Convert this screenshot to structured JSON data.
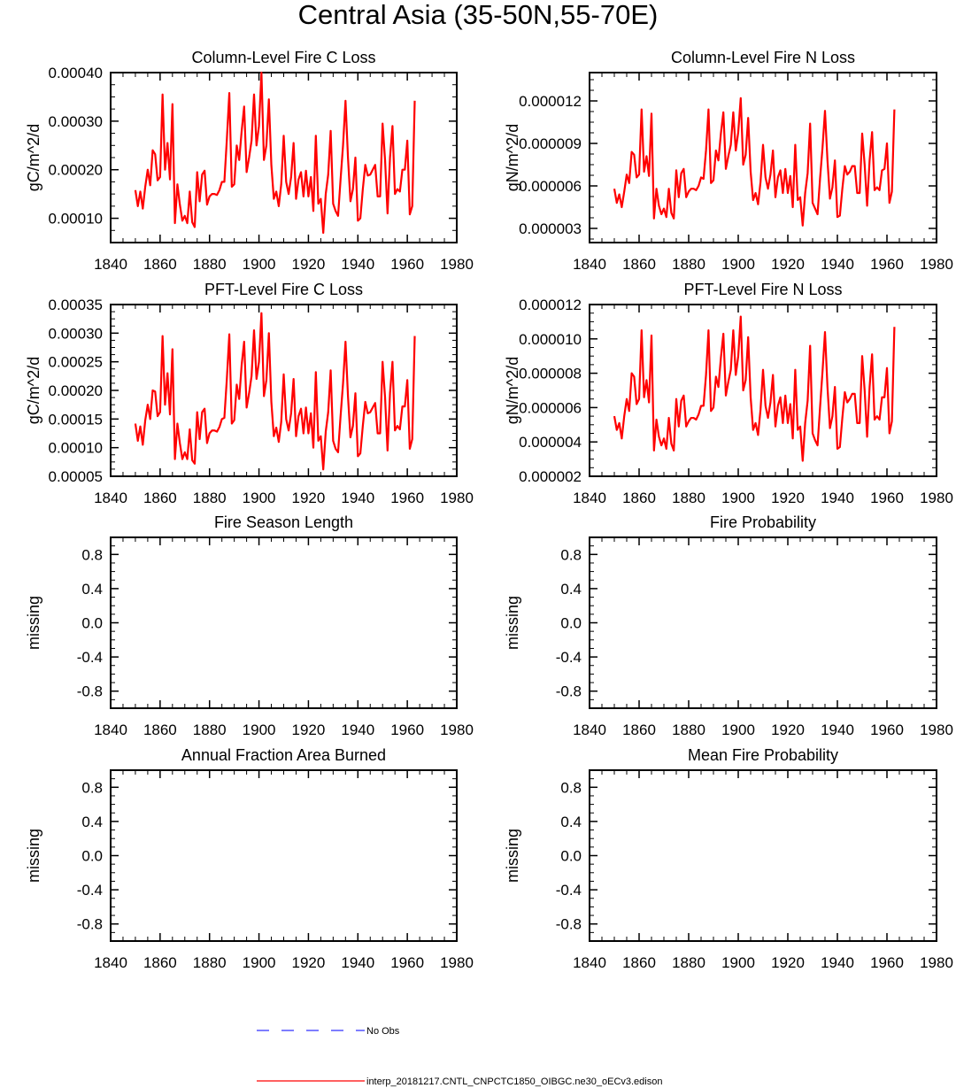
{
  "figure": {
    "title": "Central Asia (35-50N,55-70E)",
    "legend": [
      {
        "label": "No Obs",
        "color": "#3030ff",
        "dash": true
      },
      {
        "label": "interp_20181217.CNTL_CNPCTC1850_OIBGC.ne30_oECv3.edison",
        "color": "#ff0000",
        "dash": false
      }
    ]
  },
  "chart_data": [
    {
      "type": "line",
      "title": "Column-Level Fire C Loss",
      "ylabel": "gC/m^2/d",
      "xlim": [
        1840,
        1980
      ],
      "ylim": [
        5e-05,
        0.0004
      ],
      "xticks": [
        "1840",
        "1860",
        "1880",
        "1900",
        "1920",
        "1940",
        "1960",
        "1980"
      ],
      "yticks": [
        {
          "v": 0.0001,
          "label": "0.00010"
        },
        {
          "v": 0.0002,
          "label": "0.00020"
        },
        {
          "v": 0.0003,
          "label": "0.00030"
        },
        {
          "v": 0.0004,
          "label": "0.00040"
        }
      ],
      "series": [
        {
          "name": "interp_20181217.CNTL_CNPCTC1850_OIBGC.ne30_oECv3.edison",
          "color": "#ff0000",
          "x_start": 1850,
          "values": [
            0.000158,
            0.000125,
            0.000155,
            0.00012,
            0.000165,
            0.0002,
            0.000168,
            0.00024,
            0.000232,
            0.000178,
            0.000185,
            0.000355,
            0.0002,
            0.000255,
            0.00018,
            0.000335,
            9e-05,
            0.00017,
            0.000128,
            9.5e-05,
            0.000105,
            9e-05,
            0.000155,
            9.2e-05,
            8.2e-05,
            0.000195,
            0.000135,
            0.00019,
            0.000198,
            0.000128,
            0.000145,
            0.00015,
            0.00015,
            0.000148,
            0.000158,
            0.000175,
            0.000175,
            0.000262,
            0.000358,
            0.000165,
            0.00017,
            0.00025,
            0.00022,
            0.00028,
            0.00033,
            0.000195,
            0.000225,
            0.00026,
            0.000355,
            0.00025,
            0.00029,
            0.0004,
            0.00022,
            0.00025,
            0.000345,
            0.00021,
            0.00014,
            0.000155,
            0.000125,
            0.00017,
            0.00027,
            0.000175,
            0.00015,
            0.000185,
            0.000255,
            0.00014,
            0.00018,
            0.000195,
            0.000145,
            0.000198,
            0.000145,
            0.000185,
            0.000115,
            0.00027,
            0.00013,
            0.00014,
            7e-05,
            0.00015,
            0.00019,
            0.00028,
            0.00013,
            0.000115,
            0.000105,
            0.00018,
            0.00025,
            0.000342,
            0.000225,
            0.000135,
            0.00016,
            0.000225,
            9.5e-05,
            0.0001,
            0.00016,
            0.00021,
            0.000188,
            0.00019,
            0.0002,
            0.00021,
            0.000145,
            0.000145,
            0.000295,
            0.00022,
            0.00011,
            0.000225,
            0.00029,
            0.00015,
            0.00016,
            0.000155,
            0.0002,
            0.0002,
            0.00026,
            0.000108,
            0.000125,
            0.000342
          ]
        }
      ]
    },
    {
      "type": "line",
      "title": "Column-Level Fire N Loss",
      "ylabel": "gN/m^2/d",
      "xlim": [
        1840,
        1980
      ],
      "ylim": [
        2e-06,
        1.4e-05
      ],
      "xticks": [
        "1840",
        "1860",
        "1880",
        "1900",
        "1920",
        "1940",
        "1960",
        "1980"
      ],
      "yticks": [
        {
          "v": 3e-06,
          "label": "0.000003"
        },
        {
          "v": 6e-06,
          "label": "0.000006"
        },
        {
          "v": 9e-06,
          "label": "0.000009"
        },
        {
          "v": 1.2e-05,
          "label": "0.000012"
        }
      ],
      "series": [
        {
          "name": "interp_20181217.CNTL_CNPCTC1850_OIBGC.ne30_oECv3.edison",
          "color": "#ff0000",
          "x_start": 1850,
          "values": [
            5.8e-06,
            4.8e-06,
            5.4e-06,
            4.5e-06,
            5.6e-06,
            6.8e-06,
            6.2e-06,
            8.4e-06,
            8.2e-06,
            6.6e-06,
            6.8e-06,
            1.14e-05,
            7e-06,
            8.1e-06,
            6.7e-06,
            1.11e-05,
            3.7e-06,
            5.8e-06,
            4.6e-06,
            4e-06,
            4.4e-06,
            3.8e-06,
            5.8e-06,
            4.1e-06,
            3.7e-06,
            7.1e-06,
            5.2e-06,
            6.9e-06,
            7.2e-06,
            5.2e-06,
            5.6e-06,
            5.8e-06,
            5.8e-06,
            5.7e-06,
            6e-06,
            6.6e-06,
            6.5e-06,
            8.5e-06,
            1.14e-05,
            6.2e-06,
            6.4e-06,
            8.5e-06,
            7.8e-06,
            9.7e-06,
            1.12e-05,
            7.2e-06,
            8.1e-06,
            8.9e-06,
            1.12e-05,
            8.5e-06,
            9.8e-06,
            1.22e-05,
            7.5e-06,
            8.2e-06,
            1.08e-05,
            7e-06,
            5e-06,
            5.5e-06,
            4.7e-06,
            6.3e-06,
            8.9e-06,
            6.6e-06,
            5.8e-06,
            6.8e-06,
            8.5e-06,
            5.2e-06,
            6.6e-06,
            7.1e-06,
            5.5e-06,
            7.2e-06,
            5.5e-06,
            6.7e-06,
            4.5e-06,
            8.9e-06,
            5e-06,
            5.2e-06,
            3.2e-06,
            5.5e-06,
            6.9e-06,
            1.04e-05,
            4.8e-06,
            4.4e-06,
            4e-06,
            6.5e-06,
            8.7e-06,
            1.13e-05,
            7.8e-06,
            5.1e-06,
            5.9e-06,
            7.8e-06,
            3.8e-06,
            3.9e-06,
            5.8e-06,
            7.4e-06,
            6.8e-06,
            7e-06,
            7.4e-06,
            7.4e-06,
            5.5e-06,
            5.5e-06,
            9.7e-06,
            7.5e-06,
            4.6e-06,
            7.8e-06,
            9.8e-06,
            5.7e-06,
            5.9e-06,
            5.7e-06,
            7.1e-06,
            7.2e-06,
            9e-06,
            4.8e-06,
            5.6e-06,
            1.14e-05
          ]
        }
      ]
    },
    {
      "type": "line",
      "title": "PFT-Level Fire C Loss",
      "ylabel": "gC/m^2/d",
      "xlim": [
        1840,
        1980
      ],
      "ylim": [
        5e-05,
        0.00035
      ],
      "xticks": [
        "1840",
        "1860",
        "1880",
        "1900",
        "1920",
        "1940",
        "1960",
        "1980"
      ],
      "yticks": [
        {
          "v": 5e-05,
          "label": "0.00005"
        },
        {
          "v": 0.0001,
          "label": "0.00010"
        },
        {
          "v": 0.00015,
          "label": "0.00015"
        },
        {
          "v": 0.0002,
          "label": "0.00020"
        },
        {
          "v": 0.00025,
          "label": "0.00025"
        },
        {
          "v": 0.0003,
          "label": "0.00030"
        },
        {
          "v": 0.00035,
          "label": "0.00035"
        }
      ],
      "series": [
        {
          "name": "interp_20181217.CNTL_CNPCTC1850_OIBGC.ne30_oECv3.edison",
          "color": "#ff0000",
          "x_start": 1850,
          "values": [
            0.000142,
            0.000112,
            0.000137,
            0.000105,
            0.000148,
            0.000175,
            0.00015,
            0.0002,
            0.000198,
            0.000155,
            0.000162,
            0.000295,
            0.000175,
            0.00023,
            0.000158,
            0.000272,
            8e-05,
            0.000142,
            0.000108,
            8e-05,
            9.2e-05,
            8e-05,
            0.000132,
            7.8e-05,
            7.2e-05,
            0.000162,
            0.000115,
            0.000162,
            0.000168,
            0.000108,
            0.000125,
            0.00013,
            0.00013,
            0.000128,
            0.000136,
            0.00015,
            0.000152,
            0.00022,
            0.000298,
            0.000142,
            0.000148,
            0.00021,
            0.000185,
            0.000245,
            0.000285,
            0.00017,
            0.000195,
            0.000225,
            0.000305,
            0.00022,
            0.00025,
            0.000335,
            0.00019,
            0.000218,
            0.0003,
            0.00018,
            0.00012,
            0.000135,
            0.00011,
            0.000145,
            0.000228,
            0.00015,
            0.00013,
            0.00016,
            0.00022,
            0.00012,
            0.000155,
            0.000168,
            0.000125,
            0.00017,
            0.000125,
            0.00016,
            0.0001,
            0.000232,
            0.000112,
            0.00012,
            6.2e-05,
            0.000128,
            0.000162,
            0.000235,
            0.000112,
            9.8e-05,
            9.2e-05,
            0.000155,
            0.000212,
            0.000285,
            0.00019,
            0.000118,
            0.000138,
            0.000195,
            8.5e-05,
            9e-05,
            0.000138,
            0.00018,
            0.00016,
            0.000162,
            0.00017,
            0.000178,
            0.000125,
            0.000125,
            0.00025,
            0.000188,
            9.5e-05,
            0.000195,
            0.00025,
            0.00013,
            0.000138,
            0.000132,
            0.000172,
            0.000172,
            0.000218,
            9.8e-05,
            0.000115,
            0.000295
          ]
        }
      ]
    },
    {
      "type": "line",
      "title": "PFT-Level Fire N Loss",
      "ylabel": "gN/m^2/d",
      "xlim": [
        1840,
        1980
      ],
      "ylim": [
        2e-06,
        1.2e-05
      ],
      "xticks": [
        "1840",
        "1860",
        "1880",
        "1900",
        "1920",
        "1940",
        "1960",
        "1980"
      ],
      "yticks": [
        {
          "v": 2e-06,
          "label": "0.000002"
        },
        {
          "v": 4e-06,
          "label": "0.000004"
        },
        {
          "v": 6e-06,
          "label": "0.000006"
        },
        {
          "v": 8e-06,
          "label": "0.000008"
        },
        {
          "v": 1e-05,
          "label": "0.000010"
        },
        {
          "v": 1.2e-05,
          "label": "0.000012"
        }
      ],
      "series": [
        {
          "name": "interp_20181217.CNTL_CNPCTC1850_OIBGC.ne30_oECv3.edison",
          "color": "#ff0000",
          "x_start": 1850,
          "values": [
            5.5e-06,
            4.7e-06,
            5.1e-06,
            4.2e-06,
            5.5e-06,
            6.5e-06,
            5.8e-06,
            8e-06,
            7.8e-06,
            6.2e-06,
            6.5e-06,
            1.05e-05,
            6.6e-06,
            7.6e-06,
            6.3e-06,
            1.02e-05,
            3.5e-06,
            5.3e-06,
            4.3e-06,
            3.8e-06,
            4.2e-06,
            3.6e-06,
            5.4e-06,
            3.9e-06,
            3.5e-06,
            6.5e-06,
            4.9e-06,
            6.4e-06,
            6.7e-06,
            4.9e-06,
            5.2e-06,
            5.4e-06,
            5.4e-06,
            5.3e-06,
            5.6e-06,
            6.1e-06,
            6.1e-06,
            7.9e-06,
            1.05e-05,
            5.8e-06,
            6e-06,
            7.8e-06,
            7.2e-06,
            8.9e-06,
            1.03e-05,
            6.7e-06,
            7.5e-06,
            8.2e-06,
            1.05e-05,
            7.9e-06,
            9e-06,
            1.13e-05,
            7e-06,
            7.6e-06,
            1.01e-05,
            6.6e-06,
            4.7e-06,
            5.1e-06,
            4.4e-06,
            5.9e-06,
            8.2e-06,
            6.1e-06,
            5.4e-06,
            6.3e-06,
            7.9e-06,
            4.9e-06,
            6.1e-06,
            6.6e-06,
            5.1e-06,
            6.7e-06,
            5.1e-06,
            6.2e-06,
            4.2e-06,
            8.2e-06,
            4.7e-06,
            4.9e-06,
            2.9e-06,
            5.1e-06,
            6.4e-06,
            9.6e-06,
            4.5e-06,
            4.1e-06,
            3.8e-06,
            6e-06,
            8.1e-06,
            1.04e-05,
            7.2e-06,
            4.8e-06,
            5.5e-06,
            7.2e-06,
            3.6e-06,
            3.7e-06,
            5.4e-06,
            6.9e-06,
            6.3e-06,
            6.5e-06,
            6.8e-06,
            6.8e-06,
            5.1e-06,
            5.1e-06,
            9e-06,
            7e-06,
            4.3e-06,
            7.2e-06,
            9.1e-06,
            5.3e-06,
            5.5e-06,
            5.3e-06,
            6.6e-06,
            6.6e-06,
            8.3e-06,
            4.5e-06,
            5.2e-06,
            1.07e-05
          ]
        }
      ]
    },
    {
      "type": "line",
      "title": "Fire Season Length",
      "ylabel": "missing",
      "xlim": [
        1840,
        1980
      ],
      "ylim": [
        -1.0,
        1.0
      ],
      "xticks": [
        "1840",
        "1860",
        "1880",
        "1900",
        "1920",
        "1940",
        "1960",
        "1980"
      ],
      "yticks": [
        {
          "v": -0.8,
          "label": "-0.8"
        },
        {
          "v": -0.4,
          "label": "-0.4"
        },
        {
          "v": 0.0,
          "label": "0.0"
        },
        {
          "v": 0.4,
          "label": "0.4"
        },
        {
          "v": 0.8,
          "label": "0.8"
        }
      ],
      "series": []
    },
    {
      "type": "line",
      "title": "Fire Probability",
      "ylabel": "missing",
      "xlim": [
        1840,
        1980
      ],
      "ylim": [
        -1.0,
        1.0
      ],
      "xticks": [
        "1840",
        "1860",
        "1880",
        "1900",
        "1920",
        "1940",
        "1960",
        "1980"
      ],
      "yticks": [
        {
          "v": -0.8,
          "label": "-0.8"
        },
        {
          "v": -0.4,
          "label": "-0.4"
        },
        {
          "v": 0.0,
          "label": "0.0"
        },
        {
          "v": 0.4,
          "label": "0.4"
        },
        {
          "v": 0.8,
          "label": "0.8"
        }
      ],
      "series": []
    },
    {
      "type": "line",
      "title": "Annual Fraction Area Burned",
      "ylabel": "missing",
      "xlim": [
        1840,
        1980
      ],
      "ylim": [
        -1.0,
        1.0
      ],
      "xticks": [
        "1840",
        "1860",
        "1880",
        "1900",
        "1920",
        "1940",
        "1960",
        "1980"
      ],
      "yticks": [
        {
          "v": -0.8,
          "label": "-0.8"
        },
        {
          "v": -0.4,
          "label": "-0.4"
        },
        {
          "v": 0.0,
          "label": "0.0"
        },
        {
          "v": 0.4,
          "label": "0.4"
        },
        {
          "v": 0.8,
          "label": "0.8"
        }
      ],
      "series": []
    },
    {
      "type": "line",
      "title": "Mean Fire Probability",
      "ylabel": "missing",
      "xlim": [
        1840,
        1980
      ],
      "ylim": [
        -1.0,
        1.0
      ],
      "xticks": [
        "1840",
        "1860",
        "1880",
        "1900",
        "1920",
        "1940",
        "1960",
        "1980"
      ],
      "yticks": [
        {
          "v": -0.8,
          "label": "-0.8"
        },
        {
          "v": -0.4,
          "label": "-0.4"
        },
        {
          "v": 0.0,
          "label": "0.0"
        },
        {
          "v": 0.4,
          "label": "0.4"
        },
        {
          "v": 0.8,
          "label": "0.8"
        }
      ],
      "series": []
    }
  ]
}
